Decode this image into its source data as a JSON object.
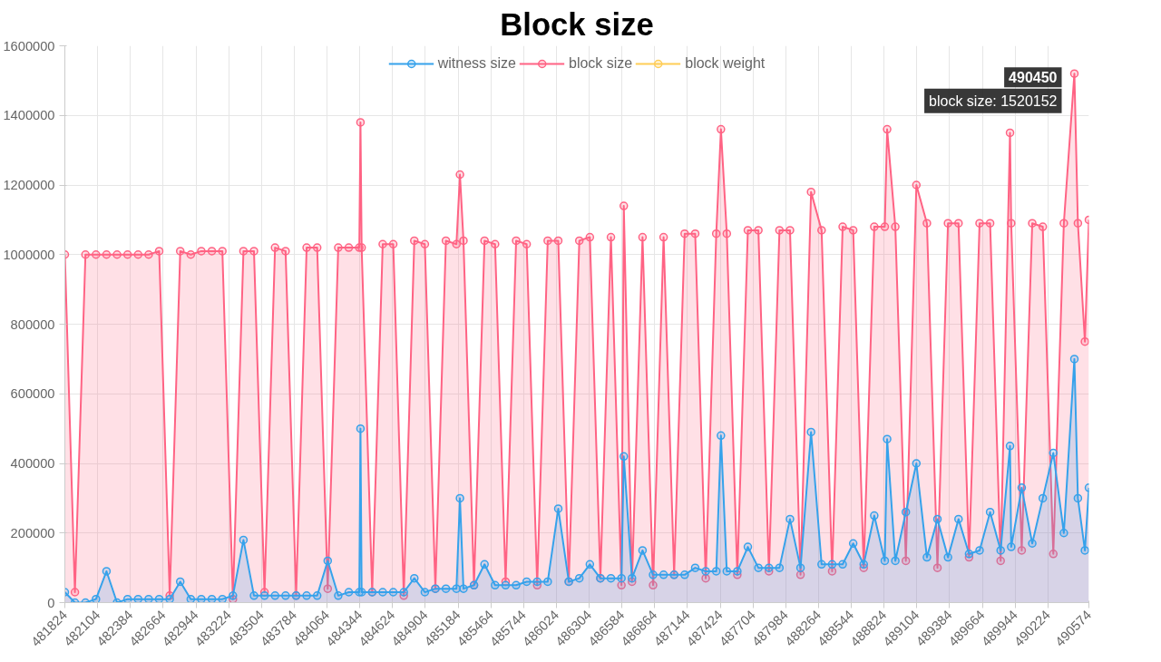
{
  "chart_data": {
    "type": "area",
    "title": "Block size",
    "marker": "circle",
    "grid": true,
    "legend": "top",
    "x": [
      481824,
      481910,
      482000,
      482090,
      482180,
      482270,
      482360,
      482450,
      482540,
      482630,
      482720,
      482810,
      482900,
      482990,
      483080,
      483170,
      483260,
      483350,
      483440,
      483530,
      483620,
      483710,
      483800,
      483890,
      483980,
      484070,
      484160,
      484250,
      484340,
      484350,
      484360,
      484450,
      484540,
      484630,
      484720,
      484810,
      484900,
      484990,
      485080,
      485170,
      485200,
      485230,
      485320,
      485410,
      485500,
      485590,
      485680,
      485770,
      485860,
      485950,
      486040,
      486130,
      486220,
      486310,
      486400,
      486490,
      486580,
      486600,
      486670,
      486760,
      486850,
      486940,
      487030,
      487120,
      487210,
      487300,
      487390,
      487430,
      487480,
      487570,
      487660,
      487750,
      487840,
      487930,
      488020,
      488110,
      488200,
      488290,
      488380,
      488470,
      488560,
      488650,
      488740,
      488830,
      488850,
      488920,
      489010,
      489100,
      489190,
      489280,
      489370,
      489460,
      489550,
      489640,
      489730,
      489820,
      489900,
      489910,
      490000,
      490090,
      490180,
      490270,
      490360,
      490450,
      490480,
      490540,
      490574
    ],
    "series": [
      {
        "name": "witness size",
        "color": "#36a2eb",
        "values": [
          30000,
          0,
          0,
          10000,
          90000,
          0,
          10000,
          10000,
          10000,
          10000,
          10000,
          60000,
          10000,
          10000,
          10000,
          10000,
          20000,
          180000,
          20000,
          20000,
          20000,
          20000,
          20000,
          20000,
          20000,
          120000,
          20000,
          30000,
          30000,
          500000,
          30000,
          30000,
          30000,
          30000,
          30000,
          70000,
          30000,
          40000,
          40000,
          40000,
          300000,
          40000,
          50000,
          110000,
          50000,
          50000,
          50000,
          60000,
          60000,
          60000,
          270000,
          60000,
          70000,
          110000,
          70000,
          70000,
          70000,
          420000,
          70000,
          150000,
          80000,
          80000,
          80000,
          80000,
          100000,
          90000,
          90000,
          480000,
          90000,
          90000,
          160000,
          100000,
          100000,
          100000,
          240000,
          100000,
          490000,
          110000,
          110000,
          110000,
          170000,
          110000,
          250000,
          120000,
          470000,
          120000,
          260000,
          400000,
          130000,
          240000,
          130000,
          240000,
          140000,
          150000,
          260000,
          150000,
          450000,
          160000,
          330000,
          170000,
          300000,
          430000,
          200000,
          700000,
          300000,
          150000,
          330000
        ]
      },
      {
        "name": "block size",
        "color": "#ff6384",
        "values": [
          1000000,
          30000,
          1000000,
          1000000,
          1000000,
          1000000,
          1000000,
          1000000,
          1000000,
          1010000,
          20000,
          1010000,
          1000000,
          1010000,
          1010000,
          1010000,
          10000,
          1010000,
          1010000,
          30000,
          1020000,
          1010000,
          20000,
          1020000,
          1020000,
          40000,
          1020000,
          1020000,
          1020000,
          1380000,
          1020000,
          30000,
          1030000,
          1030000,
          20000,
          1040000,
          1030000,
          40000,
          1040000,
          1030000,
          1230000,
          1040000,
          50000,
          1040000,
          1030000,
          60000,
          1040000,
          1030000,
          50000,
          1040000,
          1040000,
          60000,
          1040000,
          1050000,
          70000,
          1050000,
          50000,
          1140000,
          60000,
          1050000,
          50000,
          1050000,
          80000,
          1060000,
          1060000,
          70000,
          1060000,
          1360000,
          1060000,
          80000,
          1070000,
          1070000,
          90000,
          1070000,
          1070000,
          80000,
          1180000,
          1070000,
          90000,
          1080000,
          1070000,
          100000,
          1080000,
          1080000,
          1360000,
          1080000,
          120000,
          1200000,
          1090000,
          100000,
          1090000,
          1090000,
          130000,
          1090000,
          1090000,
          120000,
          1350000,
          1090000,
          150000,
          1090000,
          1080000,
          140000,
          1090000,
          1520152,
          1090000,
          750000,
          1100000
        ]
      },
      {
        "name": "block weight",
        "color": "#ffcd56",
        "values": [
          null,
          null,
          null,
          null,
          null,
          null,
          null,
          null,
          null,
          null,
          null,
          null,
          null,
          null,
          null,
          null,
          null,
          null,
          null,
          null,
          null,
          null,
          null,
          null,
          null,
          null,
          null,
          null,
          null,
          null,
          null,
          null,
          null,
          null,
          null,
          null,
          null,
          null,
          null,
          null,
          null,
          null,
          null,
          null,
          null,
          null,
          null,
          null,
          null,
          null,
          null,
          null,
          null,
          null,
          null,
          null,
          null,
          null,
          null,
          null,
          null,
          null,
          null,
          null,
          null,
          null,
          null,
          null,
          null,
          null,
          null,
          null,
          null,
          null,
          null,
          null,
          null,
          null,
          null,
          null,
          null,
          null,
          null,
          null,
          null,
          null,
          null,
          null,
          null,
          null,
          null,
          null,
          null,
          null,
          null,
          null,
          null,
          null,
          null,
          null,
          null,
          null,
          null,
          null,
          null,
          null,
          null
        ]
      }
    ],
    "xlim": [
      481824,
      490574
    ],
    "xticks": [
      481824,
      482104,
      482384,
      482664,
      482944,
      483224,
      483504,
      483784,
      484064,
      484344,
      484624,
      484904,
      485184,
      485464,
      485744,
      486024,
      486304,
      486584,
      486864,
      487144,
      487424,
      487704,
      487984,
      488264,
      488544,
      488824,
      489104,
      489384,
      489664,
      489944,
      490224,
      490574
    ],
    "ylim": [
      0,
      1600000
    ],
    "yticks": [
      0,
      200000,
      400000,
      600000,
      800000,
      1000000,
      1200000,
      1400000,
      1600000
    ],
    "annotations": [
      {
        "text": "490450",
        "x": 490450,
        "y": 1520152
      },
      {
        "text": "block size: 1520152",
        "x": 490450,
        "y": 1520152
      }
    ]
  }
}
